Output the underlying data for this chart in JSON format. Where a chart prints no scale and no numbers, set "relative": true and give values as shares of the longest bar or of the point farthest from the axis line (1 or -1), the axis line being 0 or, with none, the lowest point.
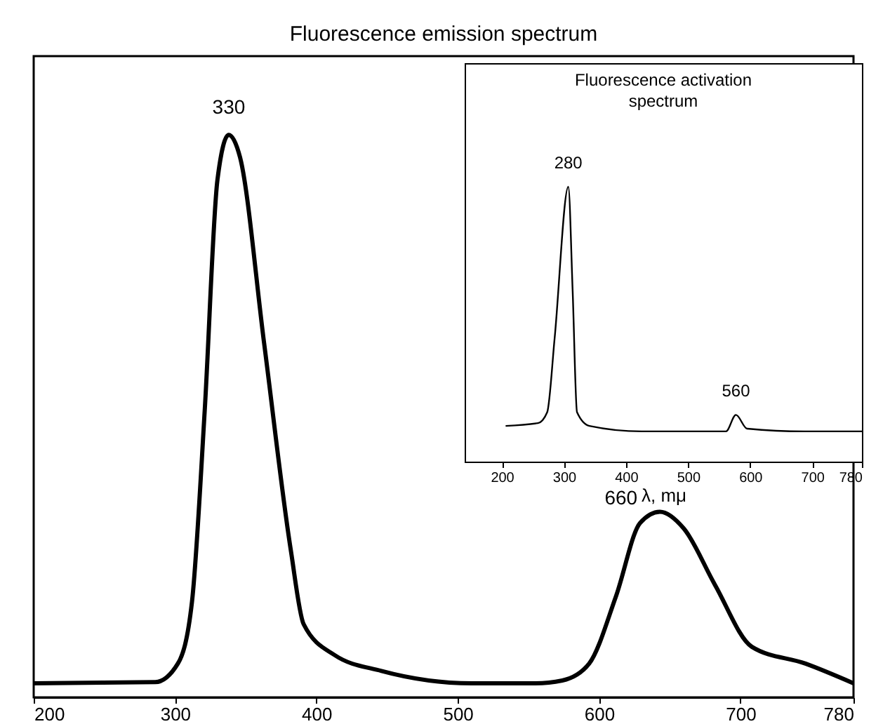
{
  "chart_data": [
    {
      "type": "line",
      "title": "Fluorescence emission spectrum",
      "relative": true,
      "xlim": [
        200,
        780
      ],
      "xticks": [
        200,
        300,
        400,
        500,
        600,
        700,
        780
      ],
      "x": [
        200,
        286,
        302,
        312,
        321,
        330,
        338,
        346,
        363,
        382,
        391,
        413,
        446,
        510,
        555,
        574,
        593,
        612,
        629,
        643,
        660,
        682,
        708,
        746,
        780
      ],
      "series": [
        {
          "color": "#000000",
          "values": [
            0.025,
            0.027,
            0.06,
            0.17,
            0.51,
            0.92,
            1,
            0.96,
            0.63,
            0.26,
            0.13,
            0.075,
            0.047,
            0.025,
            0.025,
            0.03,
            0.06,
            0.18,
            0.31,
            0.33,
            0.3,
            0.2,
            0.09,
            0.06,
            0.025
          ]
        }
      ],
      "annotations": [
        {
          "text": "330",
          "x": 338,
          "y": 1
        },
        {
          "text": "660",
          "x": 643,
          "y": 0.33
        }
      ]
    },
    {
      "type": "line",
      "title": "Fluorescence activation spectrum",
      "xlabel": "λ, mμ",
      "relative": true,
      "xlim": [
        140,
        780
      ],
      "xticks": [
        200,
        300,
        400,
        500,
        600,
        700,
        780
      ],
      "x": [
        206,
        258,
        273,
        285,
        307,
        314,
        321,
        341,
        425,
        561,
        577,
        595,
        688,
        780
      ],
      "series": [
        {
          "color": "#000000",
          "values": [
            0.13,
            0.14,
            0.18,
            0.45,
            1,
            0.62,
            0.18,
            0.13,
            0.11,
            0.11,
            0.17,
            0.12,
            0.11,
            0.11
          ]
        }
      ],
      "annotations": [
        {
          "text": "280",
          "x": 307,
          "y": 1
        },
        {
          "text": "560",
          "x": 577,
          "y": 0.17
        }
      ]
    }
  ]
}
